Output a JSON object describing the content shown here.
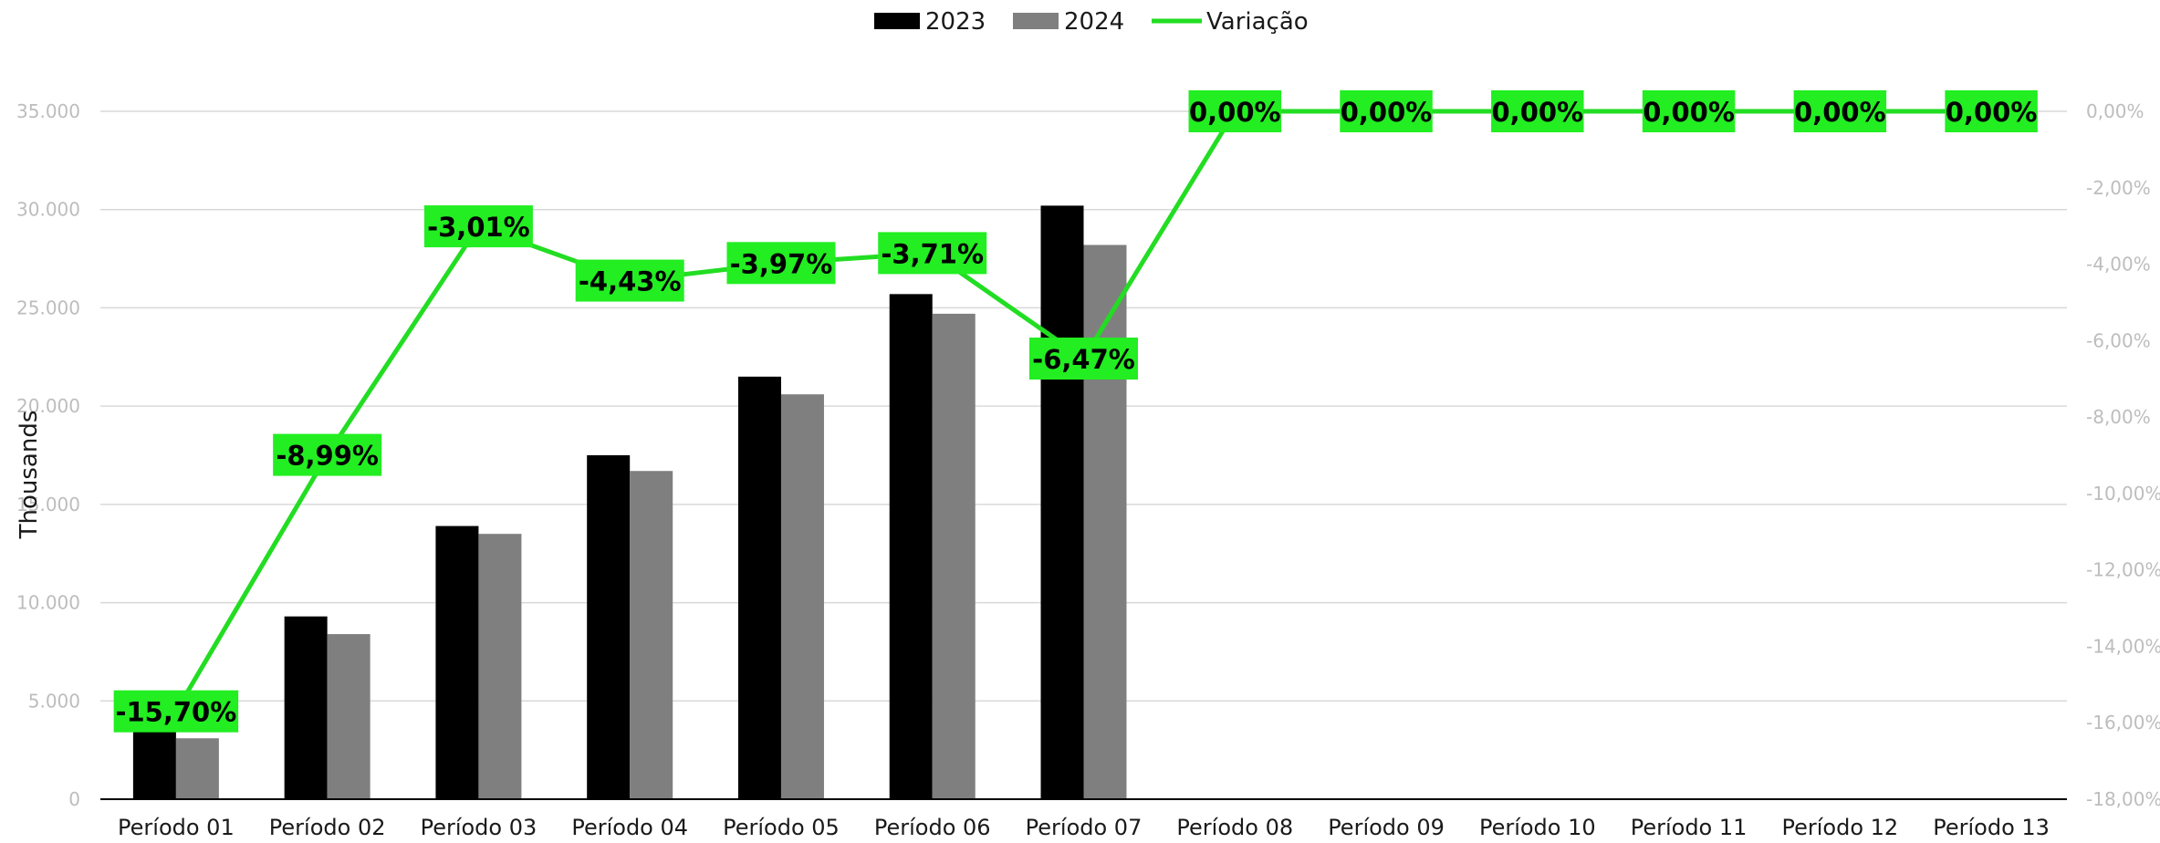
{
  "chart_data": {
    "type": "bar",
    "categories": [
      "Período 01",
      "Período 02",
      "Período 03",
      "Período 04",
      "Período 05",
      "Período 06",
      "Período 07",
      "Período 08",
      "Período 09",
      "Período 10",
      "Período 11",
      "Período 12",
      "Período 13"
    ],
    "series": [
      {
        "name": "2023",
        "kind": "bar",
        "color": "#000000",
        "values": [
          3600,
          9300,
          13900,
          17500,
          21500,
          25700,
          30200,
          null,
          null,
          null,
          null,
          null,
          null
        ]
      },
      {
        "name": "2024",
        "kind": "bar",
        "color": "#7f7f7f",
        "values": [
          3100,
          8400,
          13500,
          16700,
          20600,
          24700,
          28200,
          null,
          null,
          null,
          null,
          null,
          null
        ]
      },
      {
        "name": "Variação",
        "kind": "line",
        "axis": "right",
        "color": "#22dd22",
        "values": [
          -15.7,
          -8.99,
          -3.01,
          -4.43,
          -3.97,
          -3.71,
          -6.47,
          0.0,
          0.0,
          0.0,
          0.0,
          0.0,
          0.0
        ],
        "labels": [
          "-15,70%",
          "-8,99%",
          "-3,01%",
          "-4,43%",
          "-3,97%",
          "-3,71%",
          "-6,47%",
          "0,00%",
          "0,00%",
          "0,00%",
          "0,00%",
          "0,00%",
          "0,00%"
        ]
      }
    ],
    "ylabel": "Thousands",
    "ylim": [
      0,
      35000
    ],
    "y_ticks": [
      "0",
      "5.000",
      "10.000",
      "15.000",
      "20.000",
      "25.000",
      "30.000",
      "35.000"
    ],
    "y2lim": [
      -18,
      0
    ],
    "y2_ticks": [
      "-18,00%",
      "-16,00%",
      "-14,00%",
      "-12,00%",
      "-10,00%",
      "-8,00%",
      "-6,00%",
      "-4,00%",
      "-2,00%",
      "0,00%"
    ],
    "legend": {
      "position": "top-center",
      "entries": [
        "2023",
        "2024",
        "Variação"
      ]
    },
    "grid": true,
    "label_background": "#22ee22"
  }
}
